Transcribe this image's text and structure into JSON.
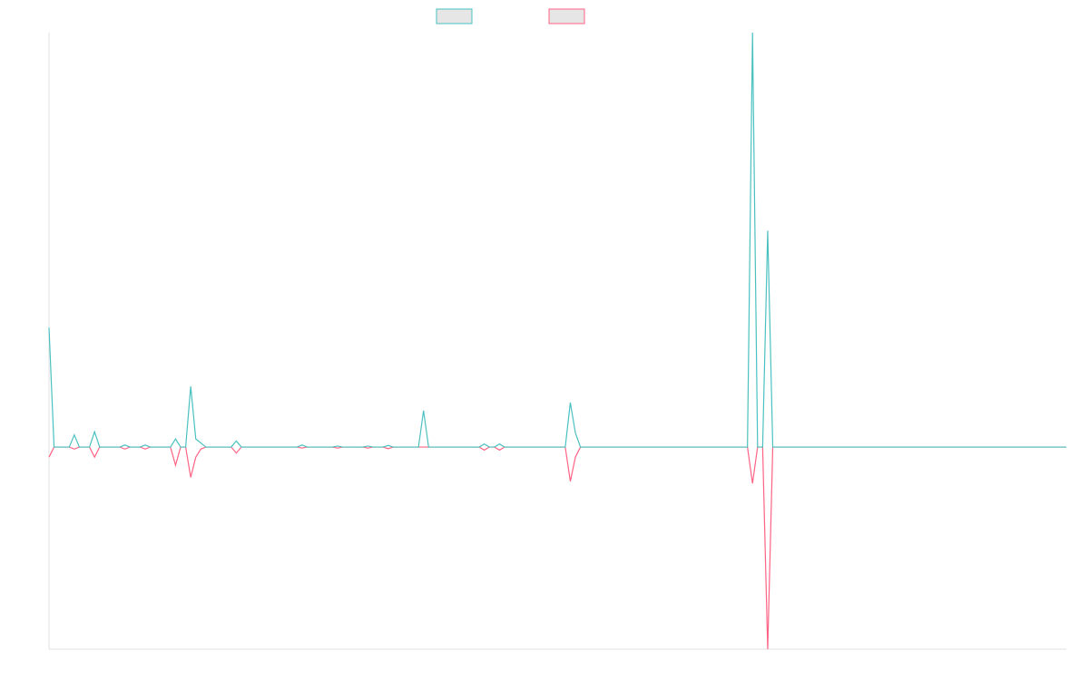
{
  "colors": {
    "series_a": "#4bc0c0",
    "series_b": "#ff6384",
    "legend_fill": "#e6e6e6",
    "axis": "#e0e0e0"
  },
  "chart_data": {
    "type": "line",
    "title": "",
    "xlabel": "",
    "ylabel": "",
    "grid": false,
    "legend": "top-center",
    "x_count": 202,
    "ylim": [
      -1.0,
      2.05
    ],
    "series": [
      {
        "color": "#4bc0c0",
        "points": [
          [
            0,
            0.59
          ],
          [
            1,
            0.0
          ],
          [
            4,
            0.0
          ],
          [
            5,
            0.06
          ],
          [
            6,
            0.0
          ],
          [
            8,
            0.0
          ],
          [
            9,
            0.075
          ],
          [
            10,
            0.0
          ],
          [
            14,
            0.0
          ],
          [
            15,
            0.01
          ],
          [
            16,
            0.0
          ],
          [
            18,
            0.0
          ],
          [
            19,
            0.01
          ],
          [
            20,
            0.0
          ],
          [
            24,
            0.0
          ],
          [
            25,
            0.04
          ],
          [
            26,
            0.0
          ],
          [
            27,
            0.0
          ],
          [
            28,
            0.3
          ],
          [
            29,
            0.04
          ],
          [
            30,
            0.02
          ],
          [
            31,
            0.0
          ],
          [
            36,
            0.0
          ],
          [
            37,
            0.03
          ],
          [
            38,
            0.0
          ],
          [
            49,
            0.0
          ],
          [
            50,
            0.01
          ],
          [
            51,
            0.0
          ],
          [
            56,
            0.0
          ],
          [
            57,
            0.005
          ],
          [
            58,
            0.0
          ],
          [
            62,
            0.0
          ],
          [
            63,
            0.005
          ],
          [
            64,
            0.0
          ],
          [
            66,
            0.0
          ],
          [
            67,
            0.008
          ],
          [
            68,
            0.0
          ],
          [
            73,
            0.0
          ],
          [
            74,
            0.18
          ],
          [
            75,
            0.0
          ],
          [
            85,
            0.0
          ],
          [
            86,
            0.015
          ],
          [
            87,
            0.0
          ],
          [
            88,
            0.0
          ],
          [
            89,
            0.015
          ],
          [
            90,
            0.0
          ],
          [
            102,
            0.0
          ],
          [
            103,
            0.22
          ],
          [
            104,
            0.07
          ],
          [
            105,
            0.0
          ],
          [
            138,
            0.0
          ],
          [
            139,
            2.05
          ],
          [
            140,
            0.0
          ],
          [
            141,
            0.0
          ],
          [
            142,
            1.07
          ],
          [
            143,
            0.0
          ],
          [
            201,
            0.0
          ]
        ]
      },
      {
        "color": "#ff6384",
        "points": [
          [
            0,
            -0.05
          ],
          [
            1,
            0.0
          ],
          [
            4,
            0.0
          ],
          [
            5,
            -0.01
          ],
          [
            6,
            0.0
          ],
          [
            8,
            0.0
          ],
          [
            9,
            -0.05
          ],
          [
            10,
            0.0
          ],
          [
            14,
            0.0
          ],
          [
            15,
            -0.01
          ],
          [
            16,
            0.0
          ],
          [
            18,
            0.0
          ],
          [
            19,
            -0.01
          ],
          [
            20,
            0.0
          ],
          [
            24,
            0.0
          ],
          [
            25,
            -0.09
          ],
          [
            26,
            0.0
          ],
          [
            27,
            0.0
          ],
          [
            28,
            -0.15
          ],
          [
            29,
            -0.05
          ],
          [
            30,
            -0.01
          ],
          [
            31,
            0.0
          ],
          [
            36,
            0.0
          ],
          [
            37,
            -0.03
          ],
          [
            38,
            0.0
          ],
          [
            49,
            0.0
          ],
          [
            50,
            -0.005
          ],
          [
            51,
            0.0
          ],
          [
            56,
            0.0
          ],
          [
            57,
            -0.005
          ],
          [
            58,
            0.0
          ],
          [
            62,
            0.0
          ],
          [
            63,
            -0.005
          ],
          [
            64,
            0.0
          ],
          [
            66,
            0.0
          ],
          [
            67,
            -0.008
          ],
          [
            68,
            0.0
          ],
          [
            85,
            0.0
          ],
          [
            86,
            -0.015
          ],
          [
            87,
            0.0
          ],
          [
            88,
            0.0
          ],
          [
            89,
            -0.015
          ],
          [
            90,
            0.0
          ],
          [
            102,
            0.0
          ],
          [
            103,
            -0.17
          ],
          [
            104,
            -0.05
          ],
          [
            105,
            0.0
          ],
          [
            138,
            0.0
          ],
          [
            139,
            -0.18
          ],
          [
            140,
            0.0
          ],
          [
            141,
            0.0
          ],
          [
            142,
            -1.0
          ],
          [
            143,
            0.0
          ],
          [
            201,
            0.0
          ]
        ]
      }
    ]
  }
}
